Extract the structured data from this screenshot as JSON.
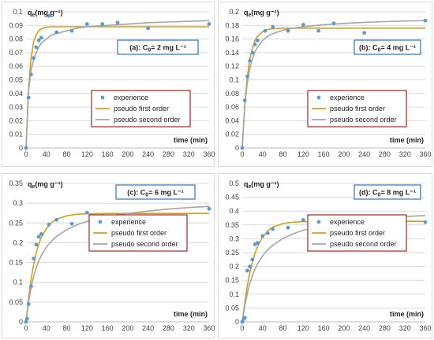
{
  "colors": {
    "experience": "#5b9bd5",
    "pseudo_first_order": "#d4a017",
    "pseudo_second_order": "#a5a5a5",
    "grid": "#d9d9d9",
    "legend_border": "#9c2b23",
    "condition_border": "#2e75b6"
  },
  "chart_data": [
    {
      "type": "scatter",
      "panel_label": "(a): C0= 2 mg L⁻¹",
      "ylabel": "qe(mg g⁻¹)",
      "xlabel": "time (min)",
      "xlim": [
        0,
        360
      ],
      "ylim": [
        0,
        0.1
      ],
      "x_ticks": [
        0,
        40,
        80,
        120,
        160,
        200,
        240,
        280,
        320,
        360
      ],
      "y_ticks": [
        "0",
        "0.01",
        "0.02",
        "0.03",
        "0.04",
        "0.05",
        "0.06",
        "0.07",
        "0.08",
        "0.09",
        "0.1"
      ],
      "grid": true,
      "legend": [
        "experience",
        "pseudo first order",
        "pseudo second order"
      ],
      "series": [
        {
          "name": "experience",
          "x": [
            0,
            5,
            10,
            15,
            20,
            25,
            30,
            45,
            60,
            90,
            120,
            150,
            180,
            240,
            360
          ],
          "y": [
            0.0,
            0.037,
            0.054,
            0.066,
            0.074,
            0.079,
            0.081,
            0.097,
            0.085,
            0.086,
            0.091,
            0.091,
            0.092,
            0.088,
            0.091
          ]
        },
        {
          "name": "pseudo first order",
          "x": [
            0,
            5,
            10,
            15,
            20,
            25,
            30,
            40,
            50,
            60,
            80,
            100,
            120,
            160,
            200,
            240,
            280,
            320,
            360
          ],
          "y": [
            0.0,
            0.044,
            0.066,
            0.078,
            0.083,
            0.086,
            0.0875,
            0.0887,
            0.089,
            0.089,
            0.089,
            0.089,
            0.089,
            0.089,
            0.089,
            0.089,
            0.089,
            0.089,
            0.089
          ]
        },
        {
          "name": "pseudo second order",
          "x": [
            0,
            5,
            10,
            15,
            20,
            25,
            30,
            40,
            50,
            60,
            80,
            100,
            120,
            160,
            200,
            240,
            280,
            320,
            360
          ],
          "y": [
            0.0,
            0.042,
            0.057,
            0.065,
            0.07,
            0.074,
            0.077,
            0.08,
            0.083,
            0.084,
            0.086,
            0.088,
            0.089,
            0.09,
            0.091,
            0.092,
            0.0925,
            0.093,
            0.0935
          ]
        }
      ]
    },
    {
      "type": "scatter",
      "panel_label": "(b): C0= 4 mg L⁻¹",
      "ylabel": "qe(mg g⁻¹)",
      "xlabel": "time (min)",
      "xlim": [
        0,
        360
      ],
      "ylim": [
        0,
        0.2
      ],
      "x_ticks": [
        0,
        40,
        80,
        120,
        160,
        200,
        240,
        280,
        320,
        360
      ],
      "y_ticks": [
        "0",
        "0.02",
        "0.04",
        "0.06",
        "0.08",
        "0.1",
        "0.12",
        "0.14",
        "0.16",
        "0.18",
        "0.2"
      ],
      "grid": true,
      "legend": [
        "experience",
        "pseudo first order",
        "pseudo second order"
      ],
      "series": [
        {
          "name": "experience",
          "x": [
            0,
            5,
            10,
            15,
            20,
            25,
            30,
            45,
            60,
            90,
            120,
            150,
            180,
            240,
            360
          ],
          "y": [
            0.0,
            0.07,
            0.105,
            0.128,
            0.14,
            0.152,
            0.158,
            0.172,
            0.178,
            0.172,
            0.181,
            0.172,
            0.183,
            0.169,
            0.187
          ]
        },
        {
          "name": "pseudo first order",
          "x": [
            0,
            5,
            10,
            15,
            20,
            25,
            30,
            40,
            50,
            60,
            80,
            100,
            120,
            160,
            200,
            240,
            280,
            320,
            360
          ],
          "y": [
            0.0,
            0.064,
            0.105,
            0.131,
            0.147,
            0.158,
            0.164,
            0.171,
            0.174,
            0.175,
            0.176,
            0.176,
            0.176,
            0.176,
            0.176,
            0.176,
            0.176,
            0.176,
            0.176
          ]
        },
        {
          "name": "pseudo second order",
          "x": [
            0,
            5,
            10,
            15,
            20,
            25,
            30,
            40,
            50,
            60,
            80,
            100,
            120,
            160,
            200,
            240,
            280,
            320,
            360
          ],
          "y": [
            0.0,
            0.062,
            0.096,
            0.117,
            0.131,
            0.141,
            0.148,
            0.158,
            0.164,
            0.168,
            0.173,
            0.176,
            0.178,
            0.181,
            0.183,
            0.1845,
            0.1855,
            0.1865,
            0.187
          ]
        }
      ]
    },
    {
      "type": "scatter",
      "panel_label": "(c): C0= 6 mg L⁻¹",
      "ylabel": "qe(mg g⁻¹)",
      "xlabel": "time (min)",
      "xlim": [
        0,
        360
      ],
      "ylim": [
        0,
        0.35
      ],
      "x_ticks": [
        0,
        40,
        80,
        120,
        160,
        200,
        240,
        280,
        320,
        360
      ],
      "y_ticks": [
        "0",
        "0.05",
        "0.1",
        "0.15",
        "0.2",
        "0.25",
        "0.3",
        "0.35"
      ],
      "grid": true,
      "legend": [
        "experience",
        "pseudo first order",
        "pseudo second order"
      ],
      "series": [
        {
          "name": "experience",
          "x": [
            0,
            2,
            5,
            10,
            15,
            20,
            25,
            30,
            45,
            60,
            90,
            120,
            150,
            180,
            240,
            360
          ],
          "y": [
            0.0,
            0.008,
            0.045,
            0.09,
            0.16,
            0.195,
            0.215,
            0.222,
            0.246,
            0.258,
            0.248,
            0.276,
            0.268,
            0.268,
            0.264,
            0.286
          ]
        },
        {
          "name": "pseudo first order",
          "x": [
            0,
            5,
            10,
            15,
            20,
            25,
            30,
            40,
            50,
            60,
            80,
            100,
            120,
            160,
            200,
            240,
            280,
            320,
            360
          ],
          "y": [
            0.0,
            0.06,
            0.108,
            0.145,
            0.174,
            0.196,
            0.213,
            0.236,
            0.251,
            0.26,
            0.268,
            0.272,
            0.273,
            0.274,
            0.274,
            0.274,
            0.274,
            0.274,
            0.274
          ]
        },
        {
          "name": "pseudo second order",
          "x": [
            0,
            5,
            10,
            15,
            20,
            25,
            30,
            40,
            50,
            60,
            80,
            100,
            120,
            160,
            200,
            240,
            280,
            320,
            360
          ],
          "y": [
            0.0,
            0.05,
            0.087,
            0.115,
            0.137,
            0.154,
            0.168,
            0.189,
            0.204,
            0.216,
            0.233,
            0.245,
            0.254,
            0.266,
            0.274,
            0.28,
            0.285,
            0.289,
            0.292
          ]
        }
      ]
    },
    {
      "type": "scatter",
      "panel_label": "(d): C0= 8 mg L⁻¹",
      "ylabel": "qe(mg g⁻¹)",
      "xlabel": "time (min)",
      "xlim": [
        0,
        360
      ],
      "ylim": [
        0,
        0.5
      ],
      "x_ticks": [
        0,
        40,
        80,
        120,
        160,
        200,
        240,
        280,
        320,
        360
      ],
      "y_ticks": [
        "0",
        "0.05",
        "0.1",
        "0.15",
        "0.2",
        "0.25",
        "0.3",
        "0.35",
        "0.4",
        "0.45",
        "0.5"
      ],
      "grid": true,
      "legend": [
        "experience",
        "pseudo first order",
        "pseudo second order"
      ],
      "series": [
        {
          "name": "experience",
          "x": [
            0,
            3,
            5,
            10,
            15,
            20,
            25,
            30,
            40,
            50,
            60,
            90,
            120,
            150,
            180,
            240,
            360
          ],
          "y": [
            0.0,
            0.01,
            0.015,
            0.185,
            0.2,
            0.225,
            0.28,
            0.285,
            0.31,
            0.32,
            0.335,
            0.34,
            0.368,
            0.365,
            0.355,
            0.37,
            0.36
          ]
        },
        {
          "name": "pseudo first order",
          "x": [
            0,
            5,
            10,
            15,
            20,
            25,
            30,
            40,
            50,
            60,
            80,
            100,
            120,
            160,
            200,
            240,
            280,
            320,
            360
          ],
          "y": [
            0.0,
            0.07,
            0.13,
            0.178,
            0.216,
            0.247,
            0.271,
            0.306,
            0.328,
            0.342,
            0.355,
            0.36,
            0.362,
            0.363,
            0.363,
            0.363,
            0.363,
            0.363,
            0.363
          ]
        },
        {
          "name": "pseudo second order",
          "x": [
            0,
            5,
            10,
            15,
            20,
            25,
            30,
            40,
            50,
            60,
            80,
            100,
            120,
            160,
            200,
            240,
            280,
            320,
            360
          ],
          "y": [
            0.0,
            0.058,
            0.103,
            0.139,
            0.167,
            0.19,
            0.209,
            0.239,
            0.26,
            0.277,
            0.301,
            0.318,
            0.331,
            0.348,
            0.36,
            0.368,
            0.375,
            0.38,
            0.384
          ]
        }
      ]
    }
  ]
}
